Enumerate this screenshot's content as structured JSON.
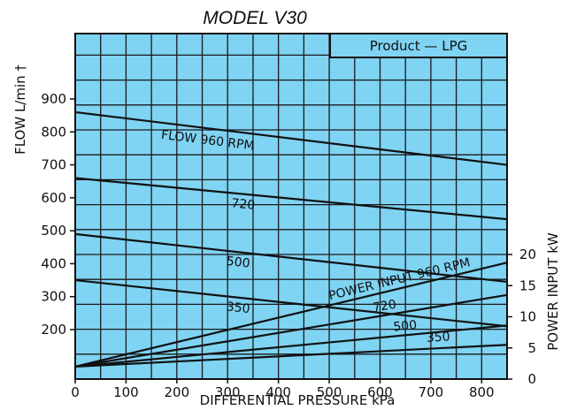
{
  "chart_data": {
    "type": "line",
    "title": "MODEL V30",
    "annotation": "Product — LPG",
    "xlabel": "DIFFERENTIAL PRESSURE kPa",
    "ylabel_left": "FLOW L/min †",
    "ylabel_right": "POWER INPUT kW",
    "xlim": [
      0,
      850
    ],
    "x_ticks": [
      0,
      100,
      200,
      300,
      400,
      500,
      600,
      700,
      800
    ],
    "y_left_ticks": [
      200,
      300,
      400,
      500,
      600,
      700,
      800,
      900
    ],
    "y_right_ticks": [
      0,
      5,
      10,
      15,
      20
    ],
    "grid": true,
    "colors": {
      "background": "#7fd3f3",
      "grid": "#1a1a1a",
      "line": "#111111"
    },
    "flow_series": [
      {
        "name": "FLOW 960 RPM",
        "label": "FLOW 960 RPM",
        "x": [
          0,
          850
        ],
        "y": [
          860,
          700
        ]
      },
      {
        "name": "720",
        "label": "720",
        "x": [
          0,
          850
        ],
        "y": [
          660,
          535
        ]
      },
      {
        "name": "500",
        "label": "500",
        "x": [
          0,
          850
        ],
        "y": [
          490,
          345
        ]
      },
      {
        "name": "350",
        "label": "350",
        "x": [
          0,
          850
        ],
        "y": [
          350,
          210
        ]
      }
    ],
    "power_series": [
      {
        "name": "POWER INPUT 960 RPM",
        "label": "POWER INPUT 960 RPM",
        "x": [
          0,
          850
        ],
        "y": [
          2,
          18.7
        ]
      },
      {
        "name": "720",
        "label": "720",
        "x": [
          0,
          850
        ],
        "y": [
          2,
          13.5
        ]
      },
      {
        "name": "500",
        "label": "500",
        "x": [
          0,
          850
        ],
        "y": [
          2,
          8.6
        ]
      },
      {
        "name": "350",
        "label": "350",
        "x": [
          0,
          850
        ],
        "y": [
          2,
          5.5
        ]
      }
    ]
  }
}
